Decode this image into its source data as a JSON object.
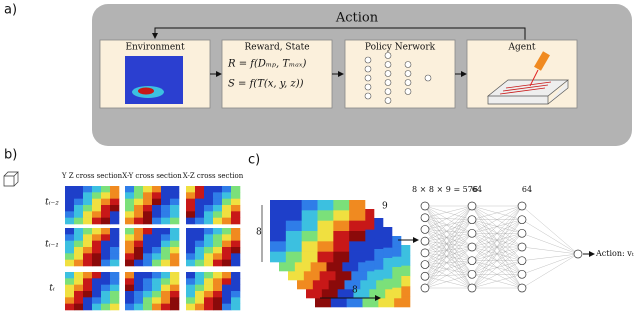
{
  "panel_a": {
    "label": "a)",
    "title": "Action",
    "boxes": [
      {
        "title": "Environment"
      },
      {
        "title": "Reward, State",
        "lines": [
          "R = f(Dₘₚ, Tₘₐₓ)",
          "S = f(T(x, y, z))"
        ]
      },
      {
        "title": "Policy Nerwork"
      },
      {
        "title": "Agent"
      }
    ]
  },
  "panel_b": {
    "label": "b)",
    "columns": [
      "Y Z cross section",
      "X-Y cross section",
      "X-Z cross section"
    ],
    "rows": [
      "tᵢ₋₂",
      "tᵢ₋₁",
      "tᵢ"
    ]
  },
  "panel_c": {
    "label": "c)",
    "dims": [
      "8",
      "9",
      "8"
    ],
    "layers": [
      "8 × 8 × 9 = 576",
      "64",
      "64"
    ],
    "output": "Action: vₜ"
  }
}
